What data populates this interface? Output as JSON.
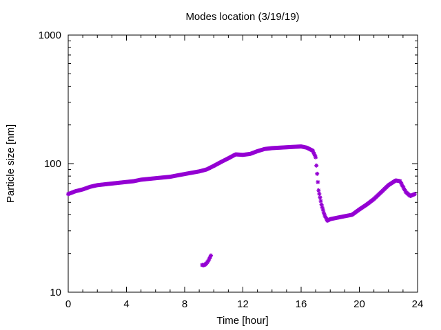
{
  "chart_data": {
    "type": "scatter",
    "title": "Modes location (3/19/19)",
    "xlabel": "Time [hour]",
    "ylabel": "Particle size [nm]",
    "xlim": [
      0,
      24
    ],
    "ylim": [
      10,
      1000
    ],
    "yscale": "log",
    "x_ticks": [
      0,
      4,
      8,
      12,
      16,
      20,
      24
    ],
    "x_tick_labels": [
      "0",
      "4",
      "8",
      "12",
      "16",
      "20",
      "24"
    ],
    "y_ticks": [
      10,
      100,
      1000
    ],
    "y_tick_labels": [
      "10",
      "100",
      "1000"
    ],
    "grid": false,
    "marker_color": "#9400d3",
    "series": [
      {
        "x": [
          0.0,
          0.5,
          1.0,
          1.5,
          2.0,
          2.5,
          3.0,
          3.5,
          4.0,
          4.5,
          5.0,
          5.5,
          6.0,
          6.5,
          7.0,
          7.5,
          8.0,
          8.5,
          9.0,
          9.5,
          10.0,
          10.5,
          11.0,
          11.5,
          12.0,
          12.5,
          13.0,
          13.5,
          14.0,
          14.5,
          15.0,
          15.5,
          16.0,
          16.4,
          16.8,
          17.0,
          17.2,
          17.4,
          17.6,
          17.8,
          18.0,
          18.5,
          19.0,
          19.5,
          20.0,
          20.5,
          21.0,
          21.5,
          22.0,
          22.5,
          22.8,
          23.0,
          23.2,
          23.5,
          23.8
        ],
        "y": [
          58,
          61,
          63,
          66,
          68,
          69,
          70,
          71,
          72,
          73,
          75,
          76,
          77,
          78,
          79,
          81,
          83,
          85,
          87,
          90,
          96,
          103,
          110,
          118,
          117,
          119,
          125,
          130,
          132,
          133,
          134,
          135,
          136,
          133,
          126,
          112,
          62,
          48,
          40,
          36,
          37,
          38,
          39,
          40,
          44,
          48,
          53,
          60,
          68,
          74,
          73,
          66,
          60,
          56,
          58
        ]
      },
      {
        "x": [
          9.2,
          9.3,
          9.4,
          9.5,
          9.6,
          9.7,
          9.8
        ],
        "y": [
          16.3,
          16.2,
          16.4,
          16.8,
          17.4,
          18.2,
          19.3
        ]
      }
    ]
  }
}
